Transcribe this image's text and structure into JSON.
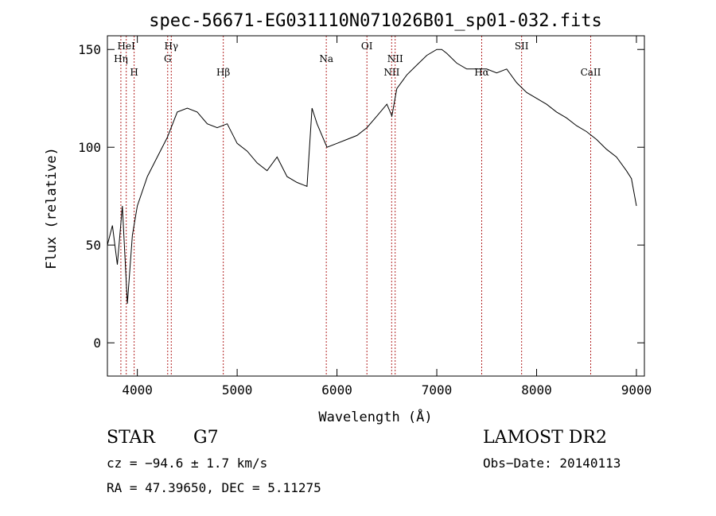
{
  "chart_data": {
    "type": "line",
    "title": "spec-56671-EG031110N071026B01_sp01-032.fits",
    "xlabel": "Wavelength (Å)",
    "ylabel": "Flux (relative)",
    "xlim": [
      3700,
      9080
    ],
    "ylim": [
      -17,
      157
    ],
    "xticks": [
      4000,
      5000,
      6000,
      7000,
      8000,
      9000
    ],
    "yticks": [
      0,
      50,
      100,
      150
    ],
    "grid": false,
    "line_color": "#000000",
    "marker_color": "#b22222",
    "lines": [
      {
        "label": "HeI",
        "x": 3889
      },
      {
        "label": "Hη",
        "x": 3835
      },
      {
        "label": "H",
        "x": 3968
      },
      {
        "label": "Hγ",
        "x": 4340
      },
      {
        "label": "G",
        "x": 4304
      },
      {
        "label": "Hβ",
        "x": 4861
      },
      {
        "label": "Na",
        "x": 5893
      },
      {
        "label": "OI",
        "x": 6300
      },
      {
        "label": "NII",
        "x": 6583
      },
      {
        "label": "NII",
        "x": 6548
      },
      {
        "label": "Hα",
        "x": 7450
      },
      {
        "label": "SII",
        "x": 7850
      },
      {
        "label": "CaII",
        "x": 8542
      }
    ],
    "series": [
      {
        "x": [
          3700,
          3750,
          3800,
          3850,
          3900,
          3950,
          4000,
          4100,
          4200,
          4300,
          4400,
          4500,
          4600,
          4700,
          4800,
          4900,
          5000,
          5100,
          5200,
          5300,
          5400,
          5500,
          5600,
          5700,
          5750,
          5800,
          5900,
          6000,
          6100,
          6200,
          6300,
          6400,
          6500,
          6550,
          6600,
          6700,
          6800,
          6900,
          7000,
          7050,
          7100,
          7200,
          7300,
          7400,
          7500,
          7600,
          7700,
          7800,
          7900,
          8000,
          8100,
          8200,
          8300,
          8400,
          8500,
          8600,
          8700,
          8800,
          8900,
          8950,
          9000
        ],
        "y": [
          50,
          60,
          40,
          70,
          20,
          55,
          70,
          85,
          95,
          105,
          118,
          120,
          118,
          112,
          110,
          112,
          102,
          98,
          92,
          88,
          95,
          85,
          82,
          80,
          120,
          112,
          100,
          102,
          104,
          106,
          110,
          116,
          122,
          116,
          130,
          137,
          142,
          147,
          150,
          150,
          148,
          143,
          140,
          140,
          140,
          138,
          140,
          133,
          128,
          125,
          122,
          118,
          115,
          111,
          108,
          104,
          99,
          95,
          88,
          84,
          70
        ]
      }
    ]
  },
  "info": {
    "class": "STAR",
    "subclass": "G7",
    "survey": "LAMOST DR2",
    "cz": "cz = −94.6 ± 1.7 km/s",
    "obs_date": "Obs−Date: 20140113",
    "radec": "RA =  47.39650, DEC =   5.11275"
  }
}
